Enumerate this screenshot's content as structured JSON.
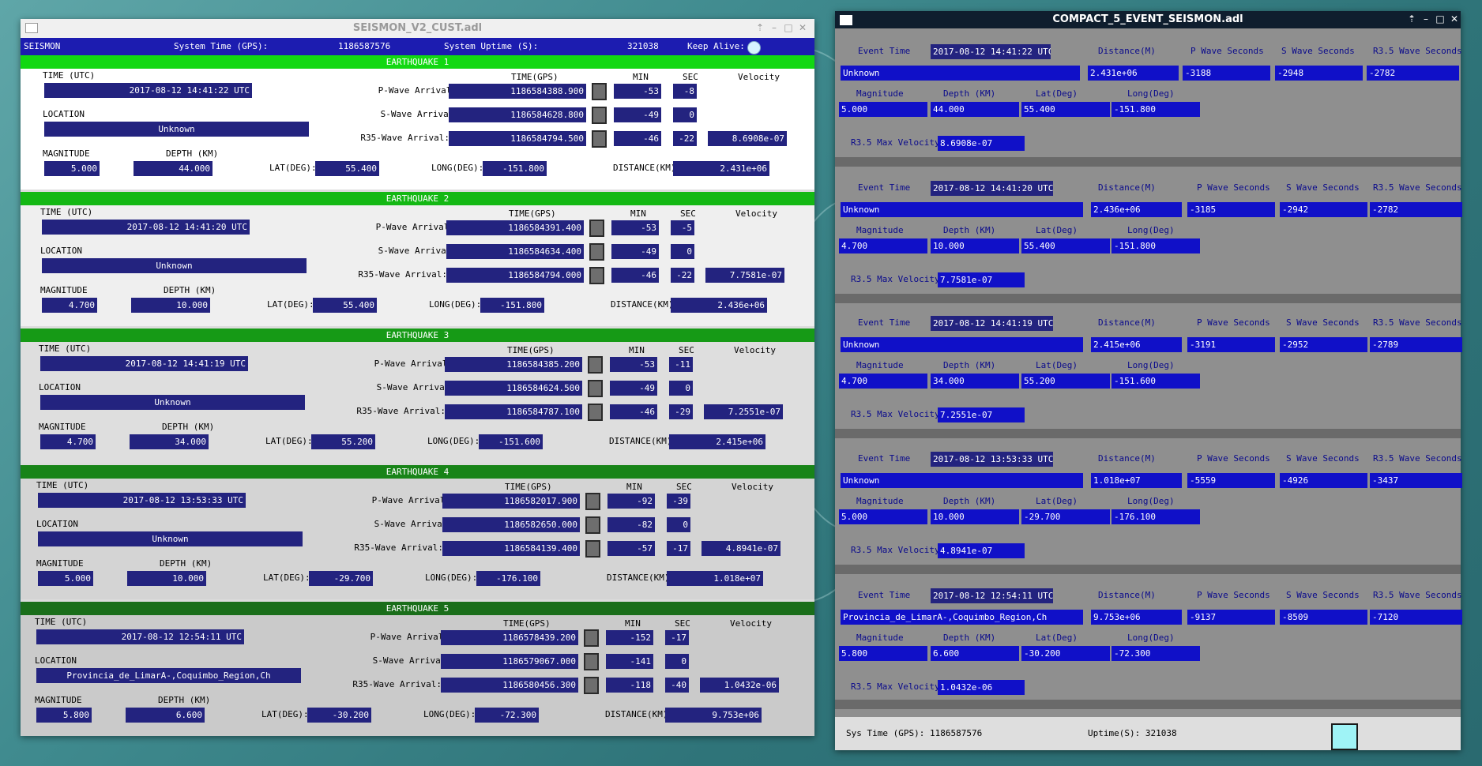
{
  "left_window": {
    "title": "SEISMON_V2_CUST.adl",
    "header": {
      "name": "SEISMON",
      "system_time_label": "System Time (GPS):",
      "system_time": "1186587576",
      "uptime_label": "System Uptime (S):",
      "uptime": "321038",
      "keep_alive_label": "Keep Alive:"
    },
    "labels": {
      "time_utc": "TIME (UTC)",
      "location": "LOCATION",
      "magnitude": "MAGNITUDE",
      "depth": "DEPTH (KM)",
      "lat": "LAT(DEG):",
      "long": "LONG(DEG):",
      "distance": "DISTANCE(KM):",
      "time_gps": "TIME(GPS)",
      "min": "MIN",
      "sec": "SEC",
      "velocity": "Velocity",
      "p_wave": "P-Wave Arrival:",
      "s_wave": "S-Wave Arrival:",
      "r35_wave": "R35-Wave Arrival:"
    },
    "band_colors": [
      "#12d812",
      "#14b814",
      "#169a16",
      "#188418",
      "#1a6e1a"
    ],
    "body_colors": [
      "#ffffff",
      "#efefef",
      "#dedede",
      "#d4d4d4",
      "#cacaca"
    ],
    "earthquakes": [
      {
        "title": "EARTHQUAKE 1",
        "time_utc": "2017-08-12 14:41:22 UTC",
        "location": "Unknown",
        "magnitude": "5.000",
        "depth": "44.000",
        "lat": "55.400",
        "long": "-151.800",
        "distance": "2.431e+06",
        "p_gps": "1186584388.900",
        "p_min": "-53",
        "p_sec": "-8",
        "s_gps": "1186584628.800",
        "s_min": "-49",
        "s_sec": "0",
        "r_gps": "1186584794.500",
        "r_min": "-46",
        "r_sec": "-22",
        "velocity": "8.6908e-07"
      },
      {
        "title": "EARTHQUAKE 2",
        "time_utc": "2017-08-12 14:41:20 UTC",
        "location": "Unknown",
        "magnitude": "4.700",
        "depth": "10.000",
        "lat": "55.400",
        "long": "-151.800",
        "distance": "2.436e+06",
        "p_gps": "1186584391.400",
        "p_min": "-53",
        "p_sec": "-5",
        "s_gps": "1186584634.400",
        "s_min": "-49",
        "s_sec": "0",
        "r_gps": "1186584794.000",
        "r_min": "-46",
        "r_sec": "-22",
        "velocity": "7.7581e-07"
      },
      {
        "title": "EARTHQUAKE 3",
        "time_utc": "2017-08-12 14:41:19 UTC",
        "location": "Unknown",
        "magnitude": "4.700",
        "depth": "34.000",
        "lat": "55.200",
        "long": "-151.600",
        "distance": "2.415e+06",
        "p_gps": "1186584385.200",
        "p_min": "-53",
        "p_sec": "-11",
        "s_gps": "1186584624.500",
        "s_min": "-49",
        "s_sec": "0",
        "r_gps": "1186584787.100",
        "r_min": "-46",
        "r_sec": "-29",
        "velocity": "7.2551e-07"
      },
      {
        "title": "EARTHQUAKE 4",
        "time_utc": "2017-08-12 13:53:33 UTC",
        "location": "Unknown",
        "magnitude": "5.000",
        "depth": "10.000",
        "lat": "-29.700",
        "long": "-176.100",
        "distance": "1.018e+07",
        "p_gps": "1186582017.900",
        "p_min": "-92",
        "p_sec": "-39",
        "s_gps": "1186582650.000",
        "s_min": "-82",
        "s_sec": "0",
        "r_gps": "1186584139.400",
        "r_min": "-57",
        "r_sec": "-17",
        "velocity": "4.8941e-07"
      },
      {
        "title": "EARTHQUAKE 5",
        "time_utc": "2017-08-12 12:54:11 UTC",
        "location": "Provincia_de_LimarA-,Coquimbo_Region,Ch",
        "magnitude": "5.800",
        "depth": "6.600",
        "lat": "-30.200",
        "long": "-72.300",
        "distance": "9.753e+06",
        "p_gps": "1186578439.200",
        "p_min": "-152",
        "p_sec": "-17",
        "s_gps": "1186579067.000",
        "s_min": "-141",
        "s_sec": "0",
        "r_gps": "1186580456.300",
        "r_min": "-118",
        "r_sec": "-40",
        "velocity": "1.0432e-06"
      }
    ]
  },
  "right_window": {
    "title": "COMPACT_5_EVENT_SEISMON.adl",
    "labels": {
      "event_time": "Event Time",
      "distance": "Distance(M)",
      "p_wave": "P Wave Seconds",
      "s_wave": "S Wave Seconds",
      "r35_wave": "R3.5 Wave Seconds",
      "magnitude": "Magnitude",
      "depth": "Depth (KM)",
      "lat": "Lat(Deg)",
      "long": "Long(Deg)",
      "max_velocity": "R3.5 Max Velocity"
    },
    "events": [
      {
        "time": "2017-08-12 14:41:22 UTC",
        "location": "Unknown",
        "distance": "2.431e+06",
        "p": "-3188",
        "s": "-2948",
        "r": "-2782",
        "magnitude": "5.000",
        "depth": "44.000",
        "lat": "55.400",
        "long": "-151.800",
        "velocity": "8.6908e-07"
      },
      {
        "time": "2017-08-12 14:41:20 UTC",
        "location": "Unknown",
        "distance": "2.436e+06",
        "p": "-3185",
        "s": "-2942",
        "r": "-2782",
        "magnitude": "4.700",
        "depth": "10.000",
        "lat": "55.400",
        "long": "-151.800",
        "velocity": "7.7581e-07"
      },
      {
        "time": "2017-08-12 14:41:19 UTC",
        "location": "Unknown",
        "distance": "2.415e+06",
        "p": "-3191",
        "s": "-2952",
        "r": "-2789",
        "magnitude": "4.700",
        "depth": "34.000",
        "lat": "55.200",
        "long": "-151.600",
        "velocity": "7.2551e-07"
      },
      {
        "time": "2017-08-12 13:53:33 UTC",
        "location": "Unknown",
        "distance": "1.018e+07",
        "p": "-5559",
        "s": "-4926",
        "r": "-3437",
        "magnitude": "5.000",
        "depth": "10.000",
        "lat": "-29.700",
        "long": "-176.100",
        "velocity": "4.8941e-07"
      },
      {
        "time": "2017-08-12 12:54:11 UTC",
        "location": "Provincia_de_LimarA-,Coquimbo_Region,Ch",
        "distance": "9.753e+06",
        "p": "-9137",
        "s": "-8509",
        "r": "-7120",
        "magnitude": "5.800",
        "depth": "6.600",
        "lat": "-30.200",
        "long": "-72.300",
        "velocity": "1.0432e-06"
      }
    ],
    "footer": {
      "sys_time": "Sys Time (GPS): 1186587576",
      "uptime": "Uptime(S):  321038"
    }
  }
}
